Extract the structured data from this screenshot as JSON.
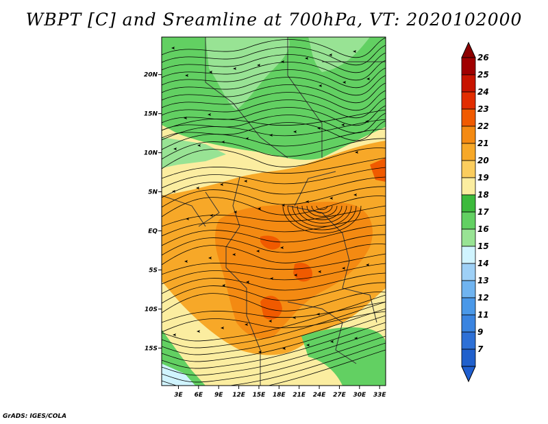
{
  "title": "WBPT [C] and Sreamline at 700hPa, VT: 2020102000",
  "footer": "GrADS: IGES/COLA",
  "y_axis": {
    "labels": [
      "20N",
      "15N",
      "10N",
      "5N",
      "EQ",
      "5S",
      "10S",
      "15S"
    ],
    "lat_values": [
      20,
      15,
      10,
      5,
      0,
      -5,
      -10,
      -15
    ]
  },
  "x_axis": {
    "labels": [
      "3E",
      "6E",
      "9E",
      "12E",
      "15E",
      "18E",
      "21E",
      "24E",
      "27E",
      "30E",
      "33E"
    ],
    "lon_values": [
      3,
      6,
      9,
      12,
      15,
      18,
      21,
      24,
      27,
      30,
      33
    ]
  },
  "map_extent": {
    "lon_min": 0.5,
    "lon_max": 33.9,
    "lat_min": -19.8,
    "lat_max": 24.8
  },
  "colorbar": {
    "labels": [
      "26",
      "25",
      "24",
      "23",
      "22",
      "21",
      "20",
      "19",
      "18",
      "17",
      "16",
      "15",
      "14",
      "13",
      "12",
      "11",
      "9",
      "7"
    ],
    "colors": [
      "#a00000",
      "#c81400",
      "#e22d00",
      "#f05a00",
      "#f48a12",
      "#f7a828",
      "#fbcd5e",
      "#fbeda0",
      "#3cba3c",
      "#62d062",
      "#98e394",
      "#d0f4ff",
      "#9ed0f6",
      "#70b4f0",
      "#4a98e8",
      "#3a84e0",
      "#2e70d6",
      "#2060cc"
    ],
    "top_arrow_color": "#8c0000",
    "bottom_arrow_color": "#1f5fd0"
  },
  "regions": [
    {
      "name": "northern-green-band",
      "color": "#62d062"
    },
    {
      "name": "northern-light-green",
      "color": "#98e394"
    },
    {
      "name": "sahel-yellow-band",
      "color": "#fbeda0"
    },
    {
      "name": "central-orange",
      "color": "#f7a828"
    },
    {
      "name": "congo-dark-orange",
      "color": "#f48a12"
    },
    {
      "name": "hotspot-red-orange",
      "color": "#f05a00"
    },
    {
      "name": "southern-green",
      "color": "#62d062"
    }
  ]
}
